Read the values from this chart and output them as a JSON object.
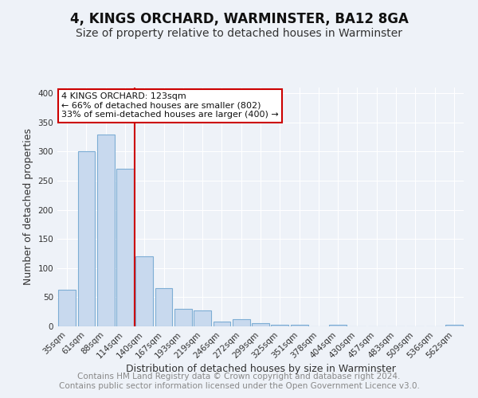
{
  "title": "4, KINGS ORCHARD, WARMINSTER, BA12 8GA",
  "subtitle": "Size of property relative to detached houses in Warminster",
  "xlabel": "Distribution of detached houses by size in Warminster",
  "ylabel": "Number of detached properties",
  "categories": [
    "35sqm",
    "61sqm",
    "88sqm",
    "114sqm",
    "140sqm",
    "167sqm",
    "193sqm",
    "219sqm",
    "246sqm",
    "272sqm",
    "299sqm",
    "325sqm",
    "351sqm",
    "378sqm",
    "404sqm",
    "430sqm",
    "457sqm",
    "483sqm",
    "509sqm",
    "536sqm",
    "562sqm"
  ],
  "values": [
    63,
    300,
    330,
    270,
    120,
    65,
    30,
    27,
    8,
    12,
    5,
    3,
    3,
    0,
    3,
    0,
    0,
    0,
    0,
    0,
    3
  ],
  "bar_color": "#c8d9ee",
  "bar_edge_color": "#7dadd4",
  "property_line_color": "#cc0000",
  "annotation_text": "4 KINGS ORCHARD: 123sqm\n← 66% of detached houses are smaller (802)\n33% of semi-detached houses are larger (400) →",
  "annotation_box_color": "#ffffff",
  "annotation_box_edge_color": "#cc0000",
  "ylim": [
    0,
    410
  ],
  "yticks": [
    0,
    50,
    100,
    150,
    200,
    250,
    300,
    350,
    400
  ],
  "footer_text": "Contains HM Land Registry data © Crown copyright and database right 2024.\nContains public sector information licensed under the Open Government Licence v3.0.",
  "background_color": "#eef2f8",
  "grid_color": "#ffffff",
  "title_fontsize": 12,
  "subtitle_fontsize": 10,
  "axis_label_fontsize": 9,
  "tick_fontsize": 7.5,
  "footer_fontsize": 7.5,
  "annotation_fontsize": 8
}
